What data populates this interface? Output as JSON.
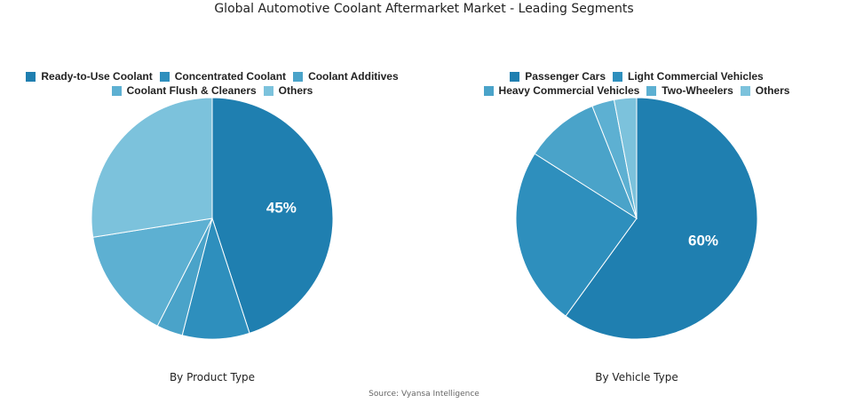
{
  "title": "Global Automotive Coolant Aftermarket Market - Leading Segments",
  "source": "Source: Vyansa Intelligence",
  "chart_data": [
    {
      "type": "pie",
      "subtitle": "By Product Type",
      "slices": [
        {
          "name": "Ready-to-Use Coolant",
          "value": 45,
          "color": "#1f7fb0",
          "label": "45%"
        },
        {
          "name": "Concentrated Coolant",
          "value": 9,
          "color": "#2e8fbd"
        },
        {
          "name": "Coolant Additives",
          "value": 3.5,
          "color": "#4aa3c9"
        },
        {
          "name": "Coolant Flush & Cleaners",
          "value": 15,
          "color": "#5db0d2"
        },
        {
          "name": "Others",
          "value": 27.5,
          "color": "#7cc2dc"
        }
      ]
    },
    {
      "type": "pie",
      "subtitle": "By Vehicle Type",
      "slices": [
        {
          "name": "Passenger Cars",
          "value": 60,
          "color": "#1f7fb0",
          "label": "60%"
        },
        {
          "name": "Light Commercial Vehicles",
          "value": 24,
          "color": "#2e8fbd"
        },
        {
          "name": "Heavy Commercial Vehicles",
          "value": 10,
          "color": "#4aa3c9"
        },
        {
          "name": "Two-Wheelers",
          "value": 3,
          "color": "#5db0d2"
        },
        {
          "name": "Others",
          "value": 3,
          "color": "#7cc2dc"
        }
      ]
    }
  ]
}
